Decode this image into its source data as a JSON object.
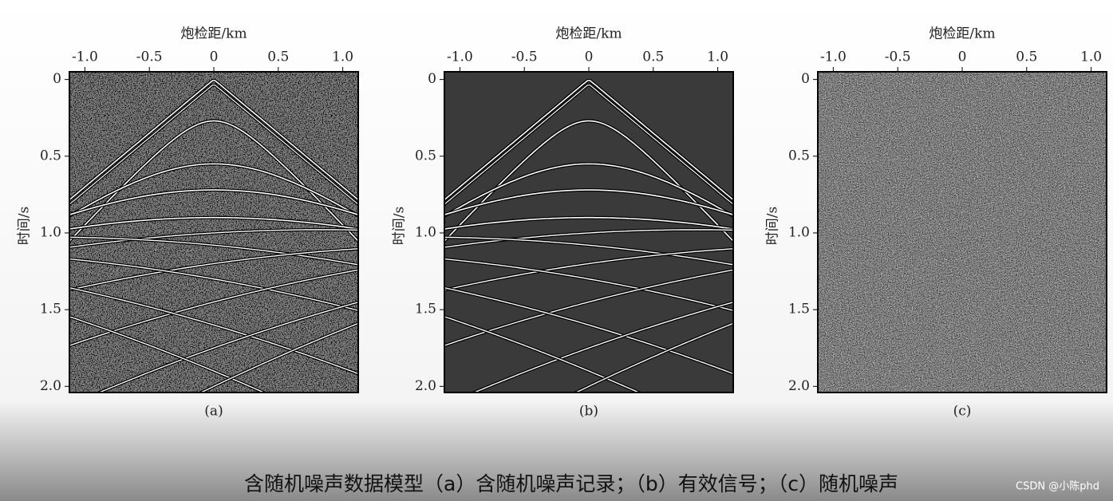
{
  "chart_data": [
    {
      "type": "image",
      "xlabel": "炮检距/km",
      "ylabel": "时间/s",
      "caption": "(a)",
      "xlim": [
        -1.12,
        1.12
      ],
      "ylim": [
        -0.05,
        2.04
      ],
      "xticks": [
        {
          "value": -1,
          "label": "-1.0"
        },
        -0.5,
        0,
        0.5,
        {
          "value": 1,
          "label": "1.0"
        }
      ],
      "yticks": [
        0,
        0.5,
        {
          "value": 1,
          "label": "1.0"
        },
        1.5,
        {
          "value": 2,
          "label": "2.0"
        }
      ]
    },
    {
      "type": "image",
      "xlabel": "炮检距/km",
      "ylabel": "时间/s",
      "caption": "(b)",
      "xlim": [
        -1.12,
        1.12
      ],
      "ylim": [
        -0.05,
        2.04
      ],
      "xticks": [
        {
          "value": -1,
          "label": "-1.0"
        },
        -0.5,
        0,
        0.5,
        {
          "value": 1,
          "label": "1.0"
        }
      ],
      "yticks": [
        0,
        0.5,
        {
          "value": 1,
          "label": "1.0"
        },
        1.5,
        {
          "value": 2,
          "label": "2.0"
        }
      ]
    },
    {
      "type": "image",
      "xlabel": "炮检距/km",
      "ylabel": "时间/s",
      "caption": "(c)",
      "xlim": [
        -1.12,
        1.12
      ],
      "ylim": [
        -0.05,
        2.04
      ],
      "xticks": [
        {
          "value": -1,
          "label": "-1.0"
        },
        -0.5,
        0,
        0.5,
        {
          "value": 1,
          "label": "1.0"
        }
      ],
      "yticks": [
        0,
        0.5,
        {
          "value": 1,
          "label": "1.0"
        },
        1.5,
        {
          "value": 2,
          "label": "2.0"
        }
      ]
    }
  ],
  "caption": "含随机噪声数据模型（a）含随机噪声记录；（b）有效信号；（c）随机噪声",
  "watermark": "CSDN @小陈phd"
}
